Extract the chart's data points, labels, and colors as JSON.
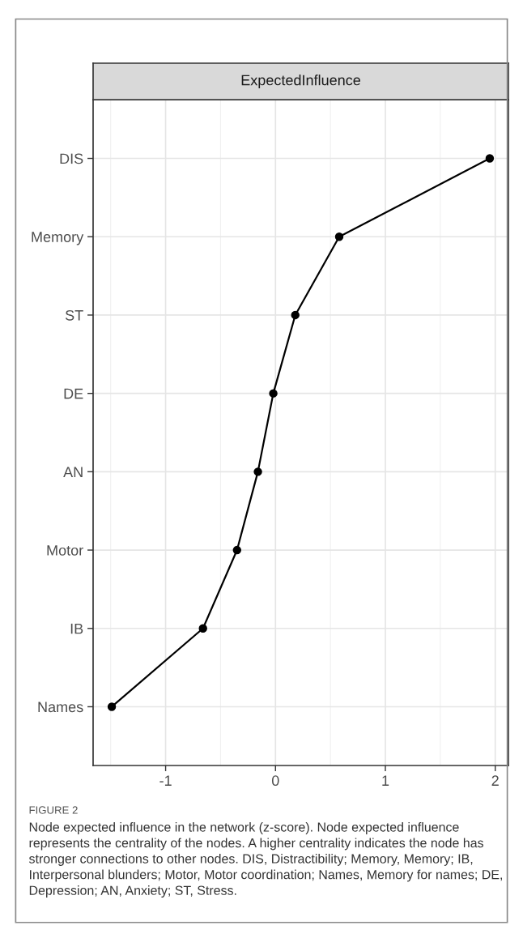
{
  "chart_data": {
    "type": "line",
    "orientation": "horizontal",
    "title": "ExpectedInfluence",
    "categories": [
      "DIS",
      "Memory",
      "ST",
      "DE",
      "AN",
      "Motor",
      "IB",
      "Names"
    ],
    "values": [
      1.95,
      0.58,
      0.18,
      -0.02,
      -0.16,
      -0.35,
      -0.66,
      -1.49
    ],
    "color": "#000000",
    "marker": "circle",
    "line_style": "solid",
    "xlim": [
      -1.66,
      2.12
    ],
    "xticks": [
      -1,
      0,
      1,
      2
    ],
    "grid": true,
    "annotations": [
      "FIGURE 2",
      "Node expected influence in the network (z-score). Node expected influence represents the centrality of the nodes. A higher centrality indicates the node has stronger connections to other nodes. DIS, Distractibility; Memory, Memory; IB, Interpersonal blunders; Motor, Motor coordination; Names, Memory for names; DE, Depression; AN, Anxiety; ST, Stress."
    ]
  }
}
